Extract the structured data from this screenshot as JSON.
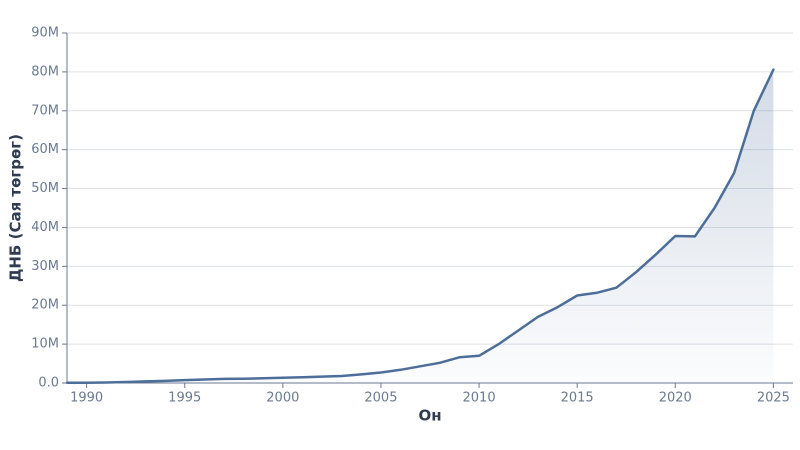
{
  "chart_data": {
    "type": "area-line",
    "x_label": "Он",
    "y_label": "ДНБ (Сая төгрөг)",
    "x": [
      1989,
      1990,
      1991,
      1992,
      1993,
      1994,
      1995,
      1996,
      1997,
      1998,
      1999,
      2000,
      2001,
      2002,
      2003,
      2004,
      2005,
      2006,
      2007,
      2008,
      2009,
      2010,
      2011,
      2012,
      2013,
      2014,
      2015,
      2016,
      2017,
      2018,
      2019,
      2020,
      2021,
      2022,
      2023,
      2024,
      2025
    ],
    "values": [
      50000,
      80000,
      120000,
      250000,
      400000,
      550000,
      750000,
      900000,
      1050000,
      1100000,
      1200000,
      1350000,
      1500000,
      1650000,
      1800000,
      2200000,
      2700000,
      3400000,
      4300000,
      5200000,
      6600000,
      7000000,
      10000000,
      13500000,
      17000000,
      19500000,
      22500000,
      23200000,
      24500000,
      28500000,
      33000000,
      37800000,
      37700000,
      45000000,
      54000000,
      70000000,
      80600000
    ],
    "color": "#4e6e9a",
    "xlim": [
      1989,
      2026
    ],
    "xticks": [
      1990,
      1995,
      2000,
      2005,
      2010,
      2015,
      2020,
      2025
    ],
    "ylim": [
      0,
      90000000
    ],
    "yticks": [
      {
        "value": 0,
        "label": "0.0"
      },
      {
        "value": 10000000,
        "label": "10M"
      },
      {
        "value": 20000000,
        "label": "20M"
      },
      {
        "value": 30000000,
        "label": "30M"
      },
      {
        "value": 40000000,
        "label": "40M"
      },
      {
        "value": 50000000,
        "label": "50M"
      },
      {
        "value": 60000000,
        "label": "60M"
      },
      {
        "value": 70000000,
        "label": "70M"
      },
      {
        "value": 80000000,
        "label": "80M"
      },
      {
        "value": 90000000,
        "label": "90M"
      }
    ],
    "grid": true
  }
}
